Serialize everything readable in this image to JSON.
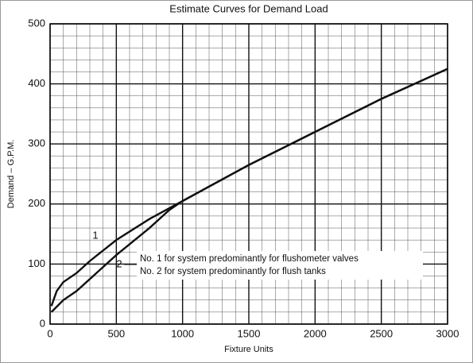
{
  "chart_data": {
    "type": "line",
    "title": "Estimate Curves for Demand Load",
    "xlabel": "Fixture Units",
    "ylabel": "Demand – G.P.M.",
    "xlim": [
      0,
      3000
    ],
    "ylim": [
      0,
      500
    ],
    "xticks": [
      0,
      500,
      1000,
      1500,
      2000,
      2500,
      3000
    ],
    "yticks": [
      0,
      100,
      200,
      300,
      400,
      500
    ],
    "xminorticks": [
      0,
      100,
      200,
      300,
      400,
      500,
      600,
      700,
      800,
      900,
      1000,
      1100,
      1200,
      1300,
      1400,
      1500,
      1600,
      1700,
      1800,
      1900,
      2000,
      2100,
      2200,
      2300,
      2400,
      2500,
      2600,
      2700,
      2800,
      2900,
      3000
    ],
    "yminorticks": [
      0,
      20,
      40,
      60,
      80,
      100,
      120,
      140,
      160,
      180,
      200,
      220,
      240,
      260,
      280,
      300,
      320,
      340,
      360,
      380,
      400,
      420,
      440,
      460,
      480,
      500
    ],
    "grid": true,
    "series": [
      {
        "name": "1",
        "color": "#111111",
        "x": [
          10,
          50,
          100,
          200,
          300,
          500,
          750,
          1000,
          1500,
          2000,
          2500,
          3000
        ],
        "values": [
          30,
          55,
          70,
          85,
          105,
          140,
          175,
          205,
          265,
          320,
          375,
          425
        ]
      },
      {
        "name": "2",
        "color": "#111111",
        "x": [
          10,
          100,
          200,
          300,
          500,
          750,
          900,
          1000,
          1500,
          2000,
          2500,
          3000
        ],
        "values": [
          20,
          40,
          55,
          75,
          115,
          160,
          190,
          205,
          265,
          320,
          375,
          425
        ]
      }
    ],
    "notes": [
      "No. 1 for system predominantly for flushometer valves",
      "No. 2 for system predominantly for flush tanks"
    ]
  }
}
